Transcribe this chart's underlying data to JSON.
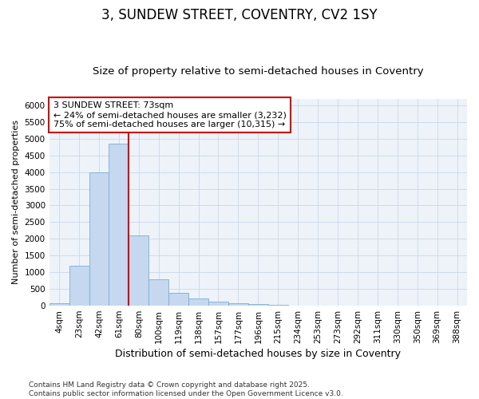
{
  "title": "3, SUNDEW STREET, COVENTRY, CV2 1SY",
  "subtitle": "Size of property relative to semi-detached houses in Coventry",
  "xlabel": "Distribution of semi-detached houses by size in Coventry",
  "ylabel": "Number of semi-detached properties",
  "categories": [
    "4sqm",
    "23sqm",
    "42sqm",
    "61sqm",
    "80sqm",
    "100sqm",
    "119sqm",
    "138sqm",
    "157sqm",
    "177sqm",
    "196sqm",
    "215sqm",
    "234sqm",
    "253sqm",
    "273sqm",
    "292sqm",
    "311sqm",
    "330sqm",
    "350sqm",
    "369sqm",
    "388sqm"
  ],
  "values": [
    70,
    1200,
    4000,
    4850,
    2100,
    800,
    380,
    220,
    130,
    70,
    40,
    30,
    10,
    5,
    3,
    2,
    1,
    1,
    1,
    0,
    0
  ],
  "bar_color": "#c5d8ef",
  "bar_edge_color": "#7aadd4",
  "grid_color": "#c8d8e8",
  "background_color": "#eef3f9",
  "vline_x_index": 4,
  "vline_color": "#cc0000",
  "annotation_text_line1": "3 SUNDEW STREET: 73sqm",
  "annotation_text_line2": "← 24% of semi-detached houses are smaller (3,232)",
  "annotation_text_line3": "75% of semi-detached houses are larger (10,315) →",
  "annotation_box_color": "#ffffff",
  "annotation_box_edge": "#cc0000",
  "ylim": [
    0,
    6200
  ],
  "yticks": [
    0,
    500,
    1000,
    1500,
    2000,
    2500,
    3000,
    3500,
    4000,
    4500,
    5000,
    5500,
    6000
  ],
  "footer_line1": "Contains HM Land Registry data © Crown copyright and database right 2025.",
  "footer_line2": "Contains public sector information licensed under the Open Government Licence v3.0.",
  "title_fontsize": 12,
  "subtitle_fontsize": 9.5,
  "xlabel_fontsize": 9,
  "ylabel_fontsize": 8,
  "tick_fontsize": 7.5,
  "annotation_fontsize": 8,
  "footer_fontsize": 6.5
}
